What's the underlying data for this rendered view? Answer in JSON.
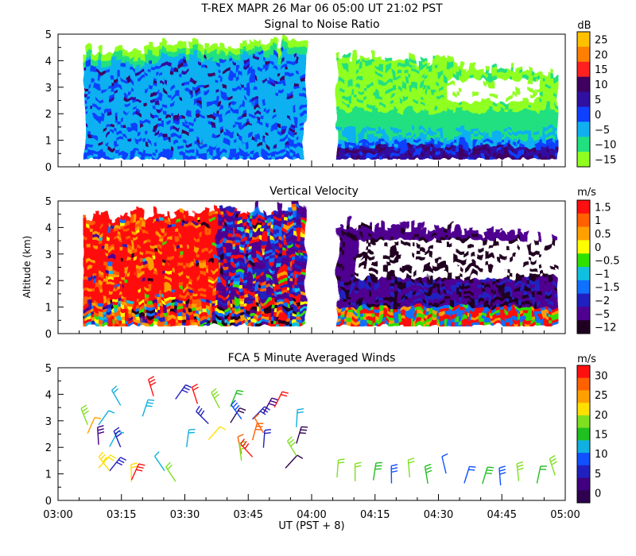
{
  "header": {
    "title": "T-REX   MAPR 26 Mar 06   05:00 UT   21:02   PST"
  },
  "chart_data": [
    {
      "type": "heatmap",
      "title": "Signal to Noise Ratio",
      "ylabel": "",
      "ylim": [
        0,
        5
      ],
      "yticks": [
        "0",
        "1",
        "2",
        "3",
        "4",
        "5"
      ],
      "colorbar": {
        "unit": "dB",
        "labels": [
          "25",
          "20",
          "15",
          "10",
          "5",
          "0",
          "−5",
          "−10",
          "−15"
        ],
        "colors": [
          "#ffc000",
          "#ff8000",
          "#ff2020",
          "#400060",
          "#3010a0",
          "#1040ff",
          "#10b0f0",
          "#20e080",
          "#90ff20"
        ]
      },
      "gap": [
        "03:58",
        "04:06"
      ]
    },
    {
      "type": "heatmap",
      "title": "Vertical Velocity",
      "ylabel": "Altitude (km)",
      "ylim": [
        0,
        5
      ],
      "yticks": [
        "0",
        "1",
        "2",
        "3",
        "4",
        "5"
      ],
      "colorbar": {
        "unit": "m/s",
        "labels": [
          "1.5",
          "1",
          "0.5",
          "0",
          "−0.5",
          "−1",
          "−1.5",
          "−2",
          "−5",
          "−12"
        ],
        "colors": [
          "#ff1010",
          "#ff6000",
          "#ffa000",
          "#ffff00",
          "#30e000",
          "#10c0e0",
          "#1070ff",
          "#2020c0",
          "#500090",
          "#200020"
        ]
      },
      "gap": [
        "03:58",
        "04:06"
      ]
    },
    {
      "type": "scatter",
      "title": "FCA 5 Minute Averaged Winds",
      "ylabel": "",
      "ylim": [
        0,
        5
      ],
      "yticks": [
        "0",
        "1",
        "2",
        "3",
        "4",
        "5"
      ],
      "colorbar": {
        "unit": "m/s",
        "labels": [
          "30",
          "25",
          "20",
          "15",
          "10",
          "5",
          "0"
        ],
        "colors": [
          "#ff1010",
          "#ff6000",
          "#ffa000",
          "#ffe000",
          "#80e020",
          "#20c020",
          "#10b0e0",
          "#1050ff",
          "#2020c0",
          "#400080",
          "#300050"
        ]
      }
    }
  ],
  "xaxis": {
    "ticks": [
      "03:00",
      "03:15",
      "03:30",
      "03:45",
      "04:00",
      "04:15",
      "04:30",
      "04:45",
      "05:00"
    ],
    "label": "UT  (PST + 8)"
  }
}
